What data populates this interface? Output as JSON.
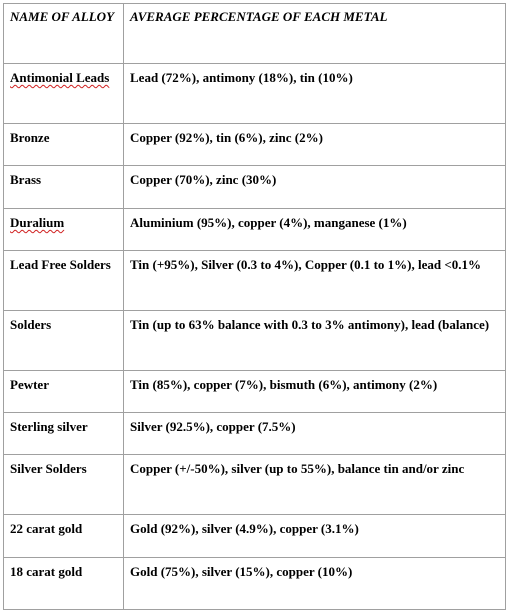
{
  "table": {
    "headers": [
      "NAME OF ALLOY",
      "AVERAGE PERCENTAGE OF EACH METAL"
    ],
    "rows": [
      {
        "name": "Antimonial Leads",
        "composition": "Lead (72%), antimony (18%), tin (10%)"
      },
      {
        "name": "Bronze",
        "composition": "Copper (92%), tin (6%), zinc (2%)"
      },
      {
        "name": "Brass",
        "composition": "Copper (70%), zinc (30%)"
      },
      {
        "name": "Duralium",
        "composition": "Aluminium (95%), copper (4%), manganese (1%)"
      },
      {
        "name": "Lead Free Solders",
        "composition": "Tin (+95%), Silver (0.3 to 4%), Copper (0.1 to 1%), lead <0.1%"
      },
      {
        "name": "Solders",
        "composition": "Tin (up to 63% balance with 0.3 to 3% antimony), lead (balance)"
      },
      {
        "name": "Pewter",
        "composition": "Tin (85%), copper (7%), bismuth (6%), antimony (2%)"
      },
      {
        "name": "Sterling silver",
        "composition": "Silver (92.5%), copper (7.5%)"
      },
      {
        "name": "Silver Solders",
        "composition": "Copper (+/-50%), silver (up to 55%), balance tin and/or zinc"
      },
      {
        "name": "22 carat gold",
        "composition": "Gold (92%), silver (4.9%), copper (3.1%)"
      },
      {
        "name": "18 carat gold",
        "composition": "Gold (75%), silver (15%), copper (10%)"
      }
    ]
  }
}
